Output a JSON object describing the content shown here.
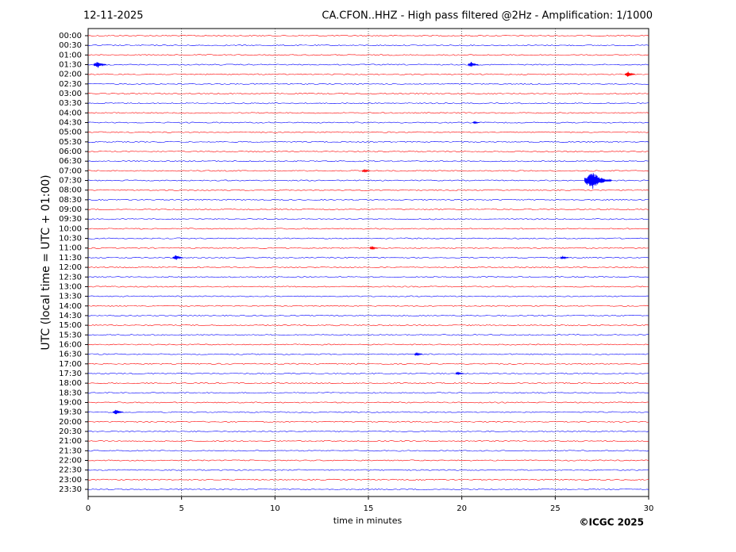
{
  "chart_data": {
    "type": "helicorder",
    "date": "12-11-2025",
    "title": "CA.CFON..HHZ - High pass filtered @2Hz - Amplification: 1/1000",
    "y_label": "UTC (local time = UTC + 01:00)",
    "x_label": "time in minutes",
    "credit": "©ICGC 2025",
    "categories": [
      "00:00",
      "00:30",
      "01:00",
      "01:30",
      "02:00",
      "02:30",
      "03:00",
      "03:30",
      "04:00",
      "04:30",
      "05:00",
      "05:30",
      "06:00",
      "06:30",
      "07:00",
      "07:30",
      "08:00",
      "08:30",
      "09:00",
      "09:30",
      "10:00",
      "10:30",
      "11:00",
      "11:30",
      "12:00",
      "12:30",
      "13:00",
      "13:30",
      "14:00",
      "14:30",
      "15:00",
      "15:30",
      "16:00",
      "16:30",
      "17:00",
      "17:30",
      "18:00",
      "18:30",
      "19:00",
      "19:30",
      "20:00",
      "20:30",
      "21:00",
      "21:30",
      "22:00",
      "22:30",
      "23:00",
      "23:30"
    ],
    "colors": [
      "#ff0000",
      "#0000ff"
    ],
    "xlim": [
      0,
      30
    ],
    "xticks": [
      0,
      5,
      10,
      15,
      20,
      25,
      30
    ],
    "grid": true,
    "events": [
      {
        "time": "01:30",
        "x": 0.5,
        "amplitude": 0.4
      },
      {
        "time": "01:30",
        "x": 20.5,
        "amplitude": 0.3
      },
      {
        "time": "02:00",
        "x": 28.9,
        "amplitude": 0.3
      },
      {
        "time": "04:30",
        "x": 20.7,
        "amplitude": 0.15
      },
      {
        "time": "07:00",
        "x": 14.8,
        "amplitude": 0.2
      },
      {
        "time": "07:30",
        "x": 27.0,
        "amplitude": 1.0
      },
      {
        "time": "11:00",
        "x": 15.2,
        "amplitude": 0.2
      },
      {
        "time": "11:30",
        "x": 4.7,
        "amplitude": 0.3
      },
      {
        "time": "11:30",
        "x": 25.4,
        "amplitude": 0.2
      },
      {
        "time": "16:30",
        "x": 17.6,
        "amplitude": 0.2
      },
      {
        "time": "17:30",
        "x": 19.8,
        "amplitude": 0.2
      },
      {
        "time": "19:30",
        "x": 1.5,
        "amplitude": 0.3
      }
    ]
  }
}
